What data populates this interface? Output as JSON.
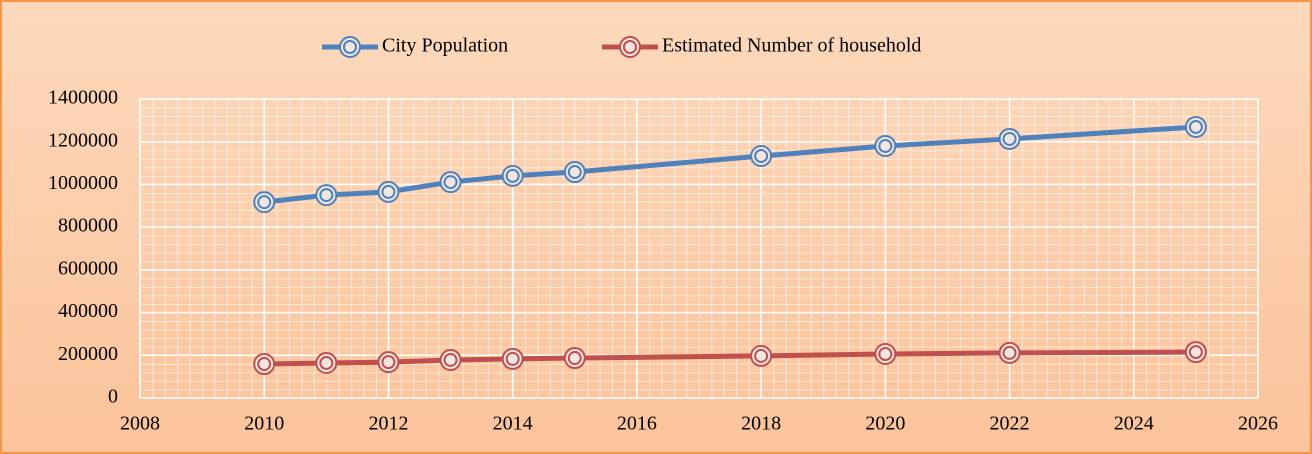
{
  "chart_data": {
    "type": "line",
    "x": [
      2010,
      2011,
      2012,
      2013,
      2014,
      2015,
      2018,
      2020,
      2022,
      2025
    ],
    "series": [
      {
        "name": "City Population",
        "color": "#4f81bd",
        "values": [
          917000,
          950000,
          965000,
          1011000,
          1040000,
          1058000,
          1133000,
          1180000,
          1213000,
          1269000
        ]
      },
      {
        "name": "Estimated Number of household",
        "color": "#c0504d",
        "values": [
          159000,
          164000,
          168000,
          178000,
          183000,
          187000,
          197000,
          206000,
          211000,
          215000
        ]
      }
    ],
    "xlim": [
      2008,
      2026
    ],
    "xticks": [
      2008,
      2010,
      2012,
      2014,
      2016,
      2018,
      2020,
      2022,
      2024,
      2026
    ],
    "ylim": [
      0,
      1400000
    ],
    "yticks": [
      0,
      200000,
      400000,
      600000,
      800000,
      1000000,
      1200000,
      1400000
    ],
    "grid": true,
    "legend": "top"
  }
}
